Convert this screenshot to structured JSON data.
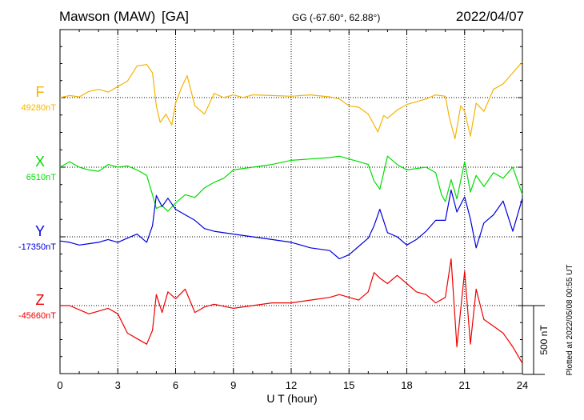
{
  "header": {
    "station": "Mawson (MAW)",
    "type": "[GA]",
    "coords": "GG (-67.60°,  62.88°)",
    "date": "2022/04/07"
  },
  "side_note": "Plotted at 2022/05/08 00:55 UT",
  "chart_data": {
    "type": "line",
    "title": "Mawson (MAW)  [GA]",
    "xlabel": "U T (hour)",
    "xlim": [
      0,
      24
    ],
    "x_ticks": [
      "0",
      "3",
      "6",
      "9",
      "12",
      "15",
      "18",
      "21",
      "24"
    ],
    "scale_bar": {
      "label": "500 nT",
      "value_nT": 500
    },
    "grid": true,
    "series": [
      {
        "name": "F",
        "baseline_label": "49280nT",
        "baseline_nT": 49280,
        "color": "#f5b400",
        "x": [
          0,
          0.5,
          1,
          1.5,
          2,
          2.5,
          3,
          3.5,
          4,
          4.5,
          4.8,
          5,
          5.2,
          5.5,
          5.8,
          6,
          6.3,
          6.6,
          7,
          7.5,
          8,
          8.5,
          9,
          9.5,
          10,
          11,
          12,
          13,
          14,
          14.5,
          15,
          15.5,
          16,
          16.5,
          16.8,
          17,
          17.5,
          18,
          18.5,
          19,
          19.5,
          20,
          20.2,
          20.5,
          20.8,
          21,
          21.3,
          21.6,
          22,
          22.5,
          23,
          23.5,
          24
        ],
        "y": [
          0,
          15,
          5,
          45,
          60,
          40,
          80,
          120,
          230,
          240,
          180,
          -60,
          -180,
          -120,
          -200,
          -40,
          70,
          160,
          -60,
          -120,
          30,
          0,
          20,
          0,
          20,
          15,
          10,
          20,
          5,
          -10,
          -60,
          -70,
          -120,
          -250,
          -130,
          -150,
          -90,
          -50,
          -30,
          -10,
          20,
          10,
          -140,
          -300,
          -60,
          -100,
          -280,
          -40,
          -100,
          60,
          100,
          180,
          260
        ]
      },
      {
        "name": "X",
        "baseline_label": "6510nT",
        "baseline_nT": 6510,
        "color": "#00dd00",
        "x": [
          0,
          0.5,
          1,
          1.5,
          2,
          2.5,
          3,
          3.5,
          4,
          4.5,
          4.8,
          5,
          5.3,
          5.6,
          6,
          6.5,
          7,
          7.5,
          8,
          8.5,
          9,
          10,
          11,
          12,
          13,
          14,
          14.5,
          15,
          15.5,
          16,
          16.3,
          16.6,
          17,
          17.5,
          18,
          18.5,
          19,
          19.5,
          19.8,
          20,
          20.3,
          20.6,
          21,
          21.3,
          21.6,
          22,
          22.5,
          23,
          23.5,
          24
        ],
        "y": [
          0,
          40,
          0,
          -20,
          -30,
          20,
          0,
          10,
          -20,
          -60,
          -200,
          -300,
          -280,
          -320,
          -260,
          -200,
          -220,
          -150,
          -110,
          -80,
          -20,
          0,
          20,
          50,
          60,
          70,
          80,
          60,
          40,
          20,
          -100,
          -160,
          80,
          20,
          -20,
          -10,
          0,
          -40,
          -200,
          -250,
          -90,
          -230,
          40,
          -180,
          -60,
          -140,
          -40,
          -80,
          0,
          -200
        ]
      },
      {
        "name": "Y",
        "baseline_label": "-17350nT",
        "baseline_nT": -17350,
        "color": "#0000dd",
        "x": [
          0,
          0.5,
          1,
          1.5,
          2,
          2.5,
          3,
          3.5,
          4,
          4.5,
          4.8,
          5,
          5.3,
          5.6,
          6,
          6.5,
          7,
          7.5,
          8,
          9,
          10,
          11,
          12,
          13,
          14,
          14.5,
          15,
          15.5,
          16,
          16.3,
          16.6,
          17,
          17.5,
          18,
          18.5,
          19,
          19.5,
          20,
          20.3,
          20.6,
          21,
          21.3,
          21.6,
          22,
          22.5,
          23,
          23.5,
          24
        ],
        "y": [
          -30,
          -40,
          -60,
          -50,
          -40,
          -20,
          -40,
          -10,
          20,
          -40,
          80,
          300,
          220,
          280,
          200,
          160,
          120,
          60,
          40,
          20,
          0,
          -20,
          -40,
          -80,
          -100,
          -160,
          -130,
          -70,
          -10,
          80,
          200,
          30,
          0,
          -60,
          -20,
          40,
          120,
          120,
          340,
          180,
          290,
          130,
          -80,
          100,
          160,
          260,
          40,
          280
        ]
      },
      {
        "name": "Z",
        "baseline_label": "-45660nT",
        "baseline_nT": -45660,
        "color": "#ee0000",
        "x": [
          0,
          0.5,
          1,
          1.5,
          2,
          2.5,
          3,
          3.5,
          4,
          4.5,
          4.8,
          5,
          5.3,
          5.6,
          6,
          6.5,
          7,
          7.5,
          8,
          9,
          10,
          11,
          12,
          13,
          14,
          14.5,
          15,
          15.5,
          16,
          16.3,
          16.6,
          17,
          17.5,
          18,
          18.5,
          19,
          19.5,
          20,
          20.3,
          20.6,
          21,
          21.3,
          21.6,
          22,
          22.5,
          23,
          23.5,
          24
        ],
        "y": [
          0,
          0,
          -30,
          -60,
          -40,
          -20,
          -60,
          -200,
          -240,
          -280,
          -180,
          80,
          -50,
          100,
          50,
          120,
          -50,
          -10,
          10,
          -20,
          0,
          20,
          20,
          40,
          60,
          80,
          60,
          40,
          100,
          240,
          200,
          160,
          220,
          160,
          100,
          80,
          20,
          60,
          340,
          -300,
          250,
          -280,
          120,
          -100,
          -150,
          -200,
          -300,
          -420
        ]
      }
    ]
  }
}
